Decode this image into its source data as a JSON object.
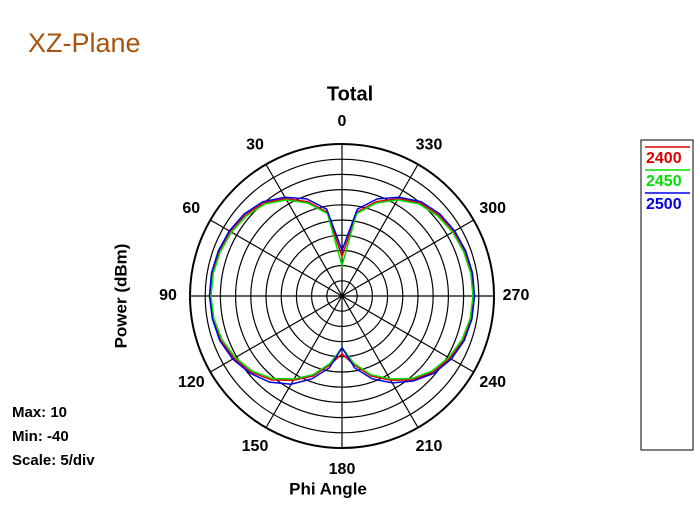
{
  "chart_data": {
    "type": "polar",
    "header": "XZ-Plane",
    "title": "Total",
    "ylabel": "Power  (dBm)",
    "xlabel": "Phi Angle",
    "info": [
      "Max: 10",
      "Min: -40",
      "Scale: 5/div"
    ],
    "rlim": [
      -40,
      10
    ],
    "rticks": [
      -40,
      -35,
      -30,
      -25,
      -20,
      -15,
      -10,
      -5,
      0,
      5,
      10
    ],
    "angle_ticks": [
      0,
      30,
      60,
      90,
      120,
      150,
      180,
      210,
      240,
      270,
      300,
      330
    ],
    "direction": "counterclockwise",
    "zero_location": "top",
    "x": [
      0,
      10,
      20,
      30,
      40,
      50,
      60,
      70,
      80,
      90,
      100,
      110,
      120,
      130,
      140,
      150,
      160,
      170,
      180,
      190,
      200,
      210,
      220,
      230,
      240,
      250,
      260,
      270,
      280,
      290,
      300,
      310,
      320,
      330,
      340,
      350
    ],
    "series": [
      {
        "name": "2400",
        "color": "#e00000",
        "values": [
          -27,
          -12,
          -7,
          -3,
          0,
          1.5,
          2.5,
          3,
          3.3,
          3.4,
          3.2,
          2.5,
          1,
          -1,
          -4,
          -8,
          -12,
          -17,
          -21,
          -17,
          -12,
          -8,
          -4,
          -1,
          1,
          2.5,
          3.2,
          3.4,
          3.3,
          3,
          2.5,
          1.5,
          0,
          -3,
          -7,
          -12
        ]
      },
      {
        "name": "2450",
        "color": "#00e000",
        "values": [
          -30,
          -12.5,
          -7.5,
          -3.5,
          -0.5,
          1,
          2,
          2.6,
          3,
          3.1,
          2.8,
          2,
          0.5,
          -1.5,
          -4.5,
          -8.5,
          -12.5,
          -17.5,
          -23,
          -17.5,
          -12.5,
          -8.5,
          -4.5,
          -1.5,
          0.5,
          2,
          2.8,
          3.1,
          3,
          2.6,
          2,
          1,
          -0.5,
          -3.5,
          -7.5,
          -12.5
        ]
      },
      {
        "name": "2500",
        "color": "#0000e0",
        "values": [
          -25,
          -11,
          -6,
          -2.5,
          0.5,
          2,
          2.8,
          3.3,
          3.6,
          3.6,
          3.3,
          2.8,
          1.5,
          -0.5,
          -3,
          -6.5,
          -11,
          -16,
          -23,
          -16,
          -11,
          -7,
          -3.5,
          -0.5,
          1.5,
          2.8,
          3.4,
          3.6,
          3.6,
          3.3,
          2.8,
          2,
          0.5,
          -2.5,
          -6,
          -11
        ]
      }
    ]
  }
}
